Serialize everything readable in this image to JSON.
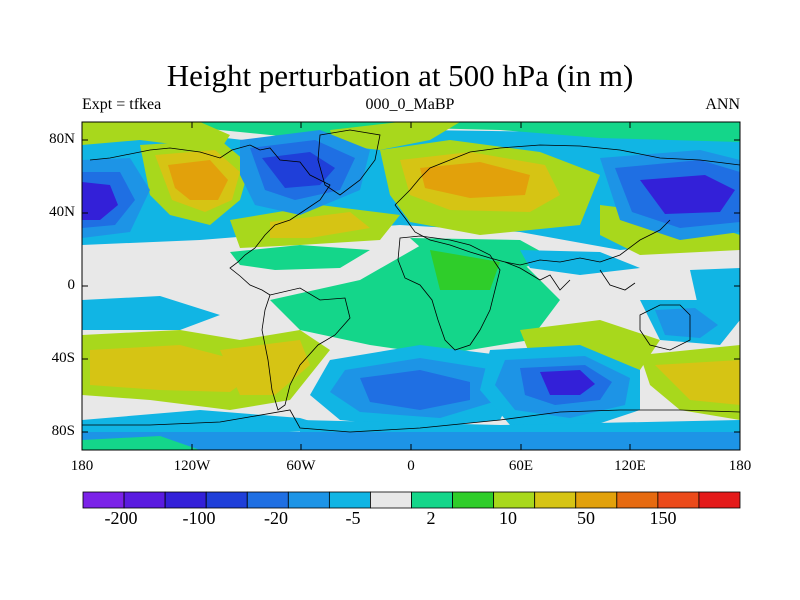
{
  "title": "Height perturbation at 500 hPa (in m)",
  "left_label": "Expt = tfkea",
  "center_label": "000_0_MaBP",
  "right_label": "ANN",
  "y_ticks": [
    "80N",
    "40N",
    "0",
    "40S",
    "80S"
  ],
  "x_ticks": [
    "180",
    "120W",
    "60W",
    "0",
    "60E",
    "120E",
    "180"
  ],
  "colorbar": {
    "colors": [
      "#7b22e8",
      "#5a1be0",
      "#3320d8",
      "#1f3fd9",
      "#1f6fe3",
      "#1d94e6",
      "#11b5e4",
      "#e8e8e8",
      "#14d68a",
      "#2fcd2a",
      "#a8d81c",
      "#d6c414",
      "#e2a10b",
      "#e66a10",
      "#eb4a1a",
      "#e41a1a"
    ],
    "labels": [
      "-200",
      "-100",
      "-20",
      "-5",
      "2",
      "10",
      "50",
      "150"
    ]
  }
}
